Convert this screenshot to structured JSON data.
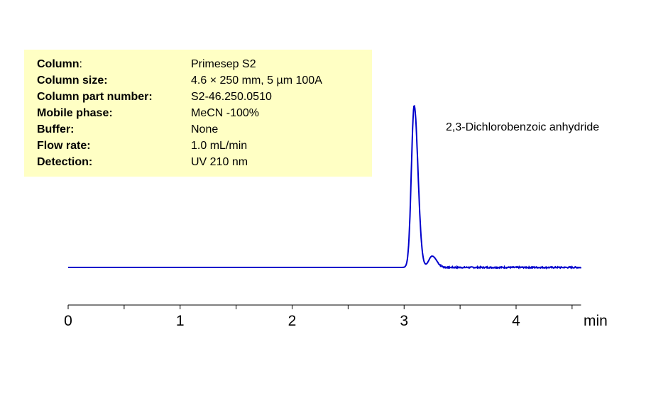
{
  "info_box": {
    "background": "#ffffc4",
    "rows": [
      {
        "label": "Column",
        "suffix": ":",
        "value": "Primesep S2"
      },
      {
        "label": "Column size:",
        "suffix": "",
        "value": "4.6 × 250 mm, 5 µm  100A"
      },
      {
        "label": "Column part number:",
        "suffix": "",
        "value": "S2-46.250.0510"
      },
      {
        "label": "Mobile phase:",
        "suffix": "",
        "value": "MeCN -100%"
      },
      {
        "label": "Buffer:",
        "suffix": "",
        "value": "None"
      },
      {
        "label": "Flow rate:",
        "suffix": "",
        "value": "1.0 mL/min"
      },
      {
        "label": "Detection:",
        "suffix": "",
        "value": "UV 210 nm"
      }
    ]
  },
  "chart_data": {
    "type": "line",
    "title": "",
    "xlabel": "min",
    "ylabel": "",
    "xlim": [
      0,
      4.58
    ],
    "xticks": [
      "0",
      "1",
      "2",
      "3",
      "4"
    ],
    "minor_tick_step": 0.5,
    "grid": false,
    "line_color": "#0000cc",
    "series": [
      {
        "peaks": [
          {
            "time": 3.09,
            "height": 100,
            "width": 0.025
          },
          {
            "time": 3.25,
            "height": 7,
            "width": 0.03
          }
        ],
        "baseline": 0
      }
    ],
    "annotations": [
      {
        "text": "2,3-Dichlorobenzoic anhydride",
        "time": 3.09
      }
    ]
  }
}
